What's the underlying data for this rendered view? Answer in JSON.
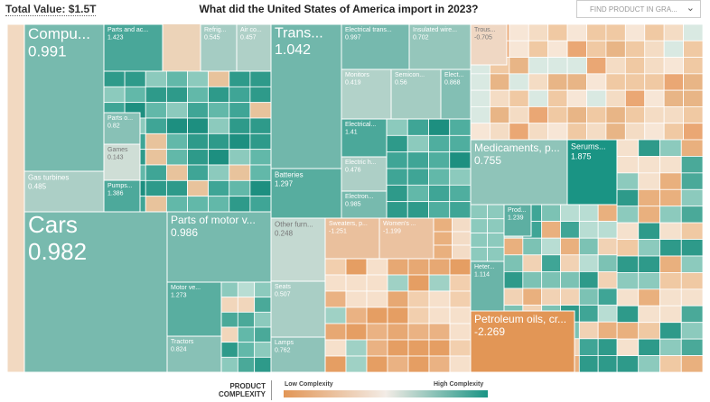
{
  "header": {
    "total_value": "Total Value: $1.5T",
    "search_placeholder": "FIND PRODUCT IN GRA..."
  },
  "chart_data": {
    "type": "treemap",
    "title": "What did the United States of America import in 2023?",
    "legend_title": "PRODUCT COMPLEXITY",
    "legend_low": "Low Complexity",
    "legend_high": "High Complexity",
    "tiles": [
      {
        "name": "Compu...",
        "value": 0.991
      },
      {
        "name": "Parts and ac...",
        "value": 1.423
      },
      {
        "name": "Refrig...",
        "value": 0.545
      },
      {
        "name": "Air co...",
        "value": 0.457
      },
      {
        "name": "Parts o...",
        "value": 0.82
      },
      {
        "name": "Games",
        "value": 0.143
      },
      {
        "name": "Pumps...",
        "value": 1.386
      },
      {
        "name": "Gas turbines",
        "value": 0.485
      },
      {
        "name": "Cars",
        "value": 0.982
      },
      {
        "name": "Parts of motor v...",
        "value": 0.986
      },
      {
        "name": "Motor ve...",
        "value": 1.273
      },
      {
        "name": "Tractors",
        "value": 0.824
      },
      {
        "name": "Trans...",
        "value": 1.042
      },
      {
        "name": "Batteries",
        "value": 1.297
      },
      {
        "name": "Electrical trans...",
        "value": 0.997
      },
      {
        "name": "Insulated wire...",
        "value": 0.702
      },
      {
        "name": "Monitors",
        "value": 0.419
      },
      {
        "name": "Semicon...",
        "value": 0.56
      },
      {
        "name": "Elect...",
        "value": 0.868
      },
      {
        "name": "Electrical...",
        "value": 1.41
      },
      {
        "name": "Electric h...",
        "value": 0.476
      },
      {
        "name": "Electron...",
        "value": 0.985
      },
      {
        "name": "Other furn...",
        "value": 0.248
      },
      {
        "name": "Seats",
        "value": 0.507
      },
      {
        "name": "Lamps",
        "value": 0.762
      },
      {
        "name": "Sweaters, p...",
        "value": -1.251
      },
      {
        "name": "Women's ...",
        "value": -1.199
      },
      {
        "name": "Trous...",
        "value": -0.705
      },
      {
        "name": "Medicaments, p...",
        "value": 0.755
      },
      {
        "name": "Serums...",
        "value": 1.875
      },
      {
        "name": "Heter...",
        "value": 1.114
      },
      {
        "name": "Prod...",
        "value": 1.239
      },
      {
        "name": "Petroleum oils, cr...",
        "value": -2.269
      }
    ]
  }
}
